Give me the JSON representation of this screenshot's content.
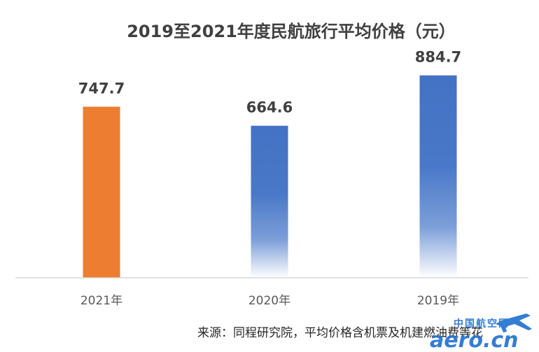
{
  "chart_data": {
    "type": "bar",
    "title": "2019至2021年度民航旅行平均价格（元）",
    "categories": [
      "2021年",
      "2020年",
      "2019年"
    ],
    "values": [
      747.7,
      664.6,
      884.7
    ],
    "value_labels": [
      "747.7",
      "664.6",
      "884.7"
    ],
    "bar_colors": [
      "#ED7D31",
      "#4472C4",
      "#4472C4"
    ],
    "ylim": [
      0,
      1000
    ],
    "grid": false,
    "legend": "none"
  },
  "source_note": "来源：同程研究院，平均价格含机票及机建燃油费等花",
  "watermark": {
    "top": "中国航空网",
    "bottom": "aero.cn",
    "icon": "airplane-icon"
  }
}
